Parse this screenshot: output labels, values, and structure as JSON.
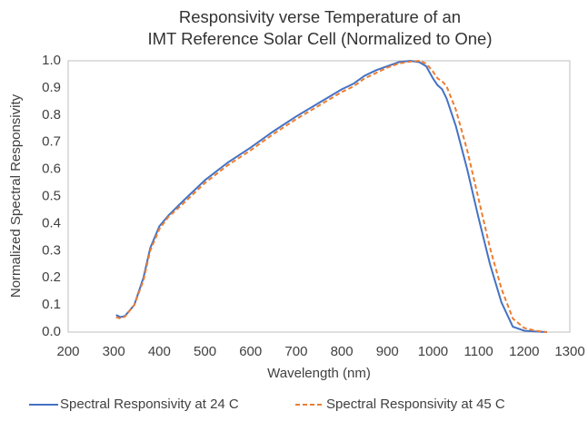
{
  "chart_data": {
    "type": "line",
    "title": [
      "Responsivity verse Temperature of an",
      "IMT Reference Solar Cell (Normalized to One)"
    ],
    "x_label": "Wavelength (nm)",
    "y_label": "Normalized Spectral Responsivity",
    "x": [
      305,
      315,
      325,
      345,
      365,
      380,
      400,
      420,
      450,
      500,
      550,
      600,
      650,
      700,
      750,
      775,
      800,
      825,
      850,
      875,
      900,
      925,
      950,
      970,
      985,
      1000,
      1010,
      1020,
      1030,
      1050,
      1075,
      1100,
      1125,
      1150,
      1175,
      1200,
      1225,
      1250
    ],
    "series": [
      {
        "name": "Spectral Responsivity at 24 C",
        "color": "#4472c4",
        "dash": "solid",
        "values": [
          0.063,
          0.055,
          0.06,
          0.1,
          0.2,
          0.31,
          0.39,
          0.43,
          0.48,
          0.56,
          0.625,
          0.68,
          0.74,
          0.795,
          0.845,
          0.87,
          0.895,
          0.915,
          0.945,
          0.965,
          0.98,
          0.995,
          1.0,
          0.995,
          0.98,
          0.935,
          0.91,
          0.895,
          0.86,
          0.76,
          0.6,
          0.42,
          0.25,
          0.11,
          0.02,
          0.005,
          0.002,
          0.0
        ]
      },
      {
        "name": "Spectral Responsivity at 45 C",
        "color": "#ed7d31",
        "dash": "dashed",
        "values": [
          0.055,
          0.05,
          0.058,
          0.1,
          0.19,
          0.3,
          0.38,
          0.425,
          0.47,
          0.55,
          0.615,
          0.67,
          0.73,
          0.785,
          0.835,
          0.86,
          0.885,
          0.905,
          0.935,
          0.955,
          0.975,
          0.99,
          0.997,
          1.0,
          0.99,
          0.96,
          0.935,
          0.925,
          0.905,
          0.82,
          0.67,
          0.49,
          0.31,
          0.16,
          0.05,
          0.015,
          0.005,
          0.0
        ]
      }
    ],
    "xlim": [
      200,
      1300
    ],
    "xticks": [
      200,
      300,
      400,
      500,
      600,
      700,
      800,
      900,
      1000,
      1100,
      1200,
      1300
    ],
    "ylim": [
      0,
      1
    ],
    "yticks": [
      {
        "value": 0,
        "label": "0.0"
      },
      0.1,
      0.2,
      0.3,
      0.4,
      0.5,
      0.6,
      0.7,
      0.8,
      0.9,
      {
        "value": 1,
        "label": "1.0"
      }
    ],
    "grid": false,
    "legend": "bottom"
  }
}
